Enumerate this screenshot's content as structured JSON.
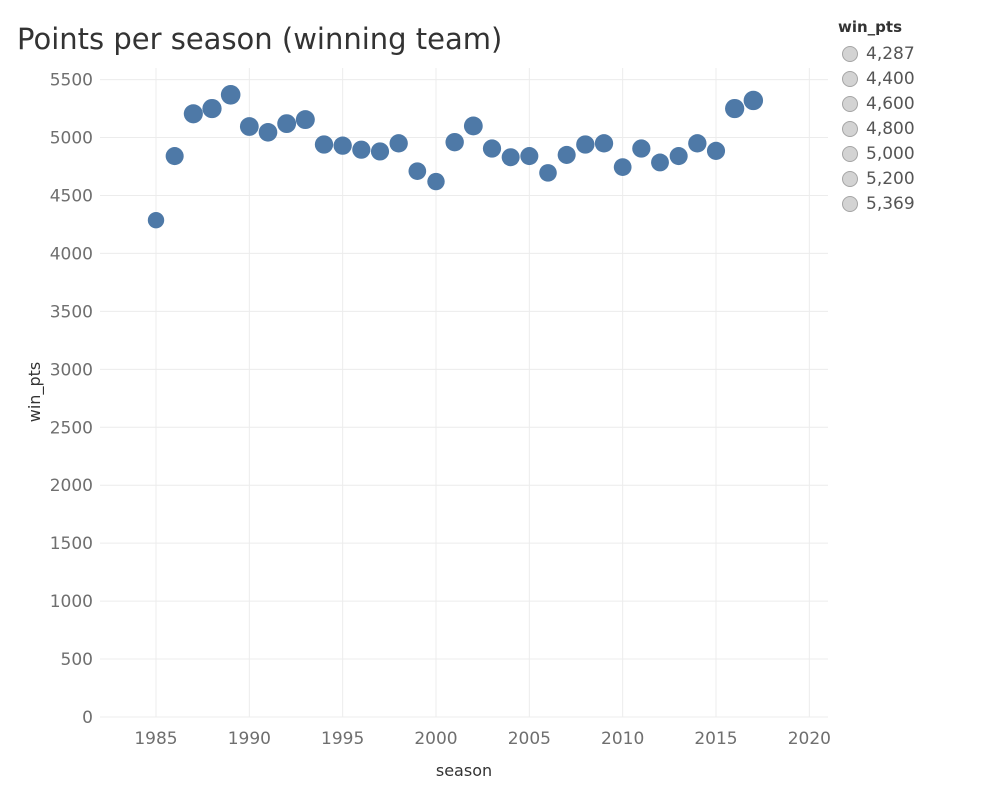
{
  "title": "Points per season (winning team)",
  "legend": {
    "title": "win_pts",
    "items": [
      "4,287",
      "4,400",
      "4,600",
      "4,800",
      "5,000",
      "5,200",
      "5,369"
    ]
  },
  "colors": {
    "point": "#4e79a7",
    "grid": "#ececec",
    "legend_fill": "#d3d3d3",
    "legend_stroke": "#a5a5a5"
  },
  "chart_data": {
    "type": "scatter",
    "title": "Points per season (winning team)",
    "xlabel": "season",
    "ylabel": "win_pts",
    "xlim": [
      1982,
      2021
    ],
    "ylim": [
      0,
      5600
    ],
    "xticks": [
      1985,
      1990,
      1995,
      2000,
      2005,
      2010,
      2015,
      2020
    ],
    "yticks": [
      0,
      500,
      1000,
      1500,
      2000,
      2500,
      3000,
      3500,
      4000,
      4500,
      5000,
      5500
    ],
    "grid": true,
    "legend_position": "top-right",
    "size_encoding": "win_pts",
    "x": [
      1985,
      1986,
      1987,
      1988,
      1989,
      1990,
      1991,
      1992,
      1993,
      1994,
      1995,
      1996,
      1997,
      1998,
      1999,
      2000,
      2001,
      2002,
      2003,
      2004,
      2005,
      2006,
      2007,
      2008,
      2009,
      2010,
      2011,
      2012,
      2013,
      2014,
      2015,
      2016,
      2017
    ],
    "y": [
      4287,
      4840,
      5205,
      5250,
      5369,
      5095,
      5045,
      5120,
      5155,
      4940,
      4930,
      4895,
      4880,
      4950,
      4710,
      4620,
      4960,
      5100,
      4905,
      4830,
      4840,
      4695,
      4850,
      4940,
      4950,
      4745,
      4905,
      4785,
      4840,
      4950,
      4885,
      5250,
      5320
    ]
  }
}
